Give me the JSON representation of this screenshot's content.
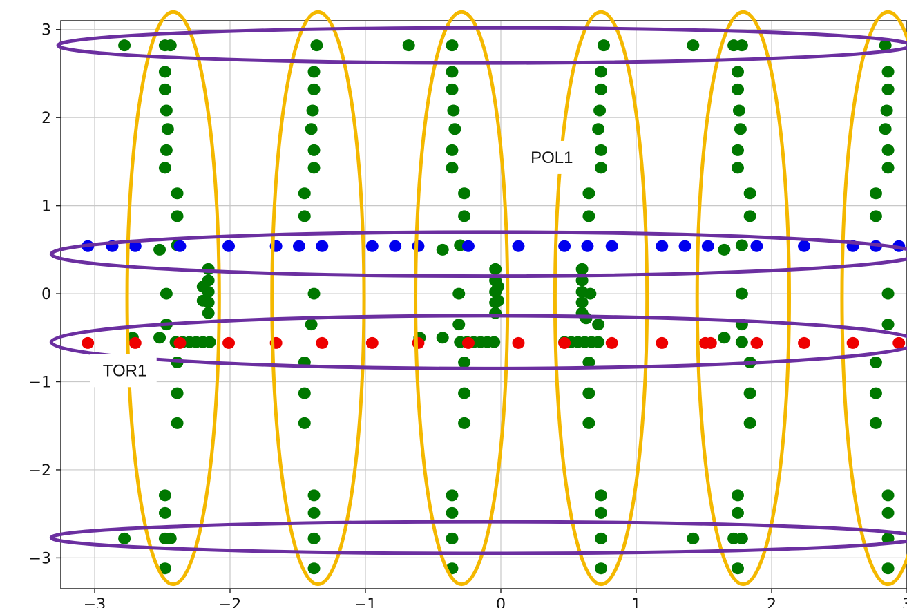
{
  "chart_data": {
    "type": "scatter",
    "title": "",
    "xlabel": "",
    "ylabel": "",
    "xlim": [
      -3.25,
      3.0
    ],
    "ylim": [
      -3.35,
      3.1
    ],
    "grid": true,
    "x_ticks": [
      -3,
      -2,
      -1,
      0,
      1,
      2,
      3
    ],
    "x_tick_labels": [
      "−3",
      "−2",
      "−1",
      "0",
      "1",
      "2",
      "3"
    ],
    "y_ticks": [
      3,
      2,
      1,
      0,
      -1,
      -2,
      -3
    ],
    "y_tick_labels": [
      "3",
      "2",
      "1",
      "0",
      "−1",
      "−2",
      "−3"
    ],
    "series": [
      {
        "color": "#007800",
        "points": [
          [
            -2.78,
            2.82
          ],
          [
            -2.48,
            2.82
          ],
          [
            -2.44,
            2.82
          ],
          [
            -1.36,
            2.82
          ],
          [
            -0.68,
            2.82
          ],
          [
            -0.36,
            2.82
          ],
          [
            0.76,
            2.82
          ],
          [
            1.42,
            2.82
          ],
          [
            1.72,
            2.82
          ],
          [
            1.78,
            2.82
          ],
          [
            2.84,
            2.82
          ],
          [
            -2.48,
            2.52
          ],
          [
            -2.48,
            2.32
          ],
          [
            -2.47,
            2.08
          ],
          [
            -2.46,
            1.87
          ],
          [
            -2.47,
            1.63
          ],
          [
            -2.48,
            1.43
          ],
          [
            -2.39,
            1.14
          ],
          [
            -2.39,
            0.88
          ],
          [
            -1.38,
            2.52
          ],
          [
            -1.38,
            2.32
          ],
          [
            -1.39,
            2.08
          ],
          [
            -1.4,
            1.87
          ],
          [
            -1.38,
            1.63
          ],
          [
            -1.38,
            1.43
          ],
          [
            -1.45,
            1.14
          ],
          [
            -1.45,
            0.88
          ],
          [
            -0.36,
            2.52
          ],
          [
            -0.36,
            2.32
          ],
          [
            -0.35,
            2.08
          ],
          [
            -0.34,
            1.87
          ],
          [
            -0.36,
            1.63
          ],
          [
            -0.36,
            1.43
          ],
          [
            -0.27,
            1.14
          ],
          [
            -0.27,
            0.88
          ],
          [
            0.74,
            2.52
          ],
          [
            0.74,
            2.32
          ],
          [
            0.73,
            2.08
          ],
          [
            0.72,
            1.87
          ],
          [
            0.74,
            1.63
          ],
          [
            0.74,
            1.43
          ],
          [
            0.65,
            1.14
          ],
          [
            0.65,
            0.88
          ],
          [
            1.75,
            2.52
          ],
          [
            1.75,
            2.32
          ],
          [
            1.76,
            2.08
          ],
          [
            1.77,
            1.87
          ],
          [
            1.75,
            1.63
          ],
          [
            1.75,
            1.43
          ],
          [
            1.84,
            1.14
          ],
          [
            1.84,
            0.88
          ],
          [
            2.86,
            2.52
          ],
          [
            2.86,
            2.32
          ],
          [
            2.85,
            2.08
          ],
          [
            2.84,
            1.87
          ],
          [
            2.86,
            1.63
          ],
          [
            2.86,
            1.43
          ],
          [
            2.77,
            1.14
          ],
          [
            2.77,
            0.88
          ],
          [
            -2.52,
            0.5
          ],
          [
            -2.39,
            0.55
          ],
          [
            -0.43,
            0.5
          ],
          [
            -0.3,
            0.55
          ],
          [
            1.65,
            0.5
          ],
          [
            1.78,
            0.55
          ],
          [
            -2.16,
            0.28
          ],
          [
            -2.16,
            0.15
          ],
          [
            -2.16,
            0.02
          ],
          [
            -2.16,
            -0.1
          ],
          [
            -2.16,
            -0.22
          ],
          [
            -2.2,
            0.08
          ],
          [
            -2.2,
            -0.08
          ],
          [
            -0.04,
            0.28
          ],
          [
            -0.04,
            0.15
          ],
          [
            -0.04,
            0.02
          ],
          [
            -0.04,
            -0.1
          ],
          [
            -0.04,
            -0.22
          ],
          [
            -0.02,
            0.08
          ],
          [
            -0.02,
            -0.08
          ],
          [
            0.6,
            0.28
          ],
          [
            0.6,
            0.15
          ],
          [
            0.6,
            0.02
          ],
          [
            0.6,
            -0.1
          ],
          [
            0.6,
            -0.22
          ],
          [
            0.66,
            0.0
          ],
          [
            0.63,
            -0.28
          ],
          [
            -2.47,
            0.0
          ],
          [
            -1.38,
            0.0
          ],
          [
            -0.31,
            0.0
          ],
          [
            1.78,
            0.0
          ],
          [
            2.86,
            0.0
          ],
          [
            -2.47,
            -0.35
          ],
          [
            -1.4,
            -0.35
          ],
          [
            -0.31,
            -0.35
          ],
          [
            0.72,
            -0.35
          ],
          [
            1.78,
            -0.35
          ],
          [
            2.86,
            -0.35
          ],
          [
            -2.72,
            -0.5
          ],
          [
            -2.52,
            -0.5
          ],
          [
            -2.4,
            -0.55
          ],
          [
            -2.35,
            -0.55
          ],
          [
            -2.3,
            -0.55
          ],
          [
            -2.25,
            -0.55
          ],
          [
            -2.2,
            -0.55
          ],
          [
            -2.15,
            -0.55
          ],
          [
            -0.6,
            -0.5
          ],
          [
            -0.43,
            -0.5
          ],
          [
            -0.3,
            -0.55
          ],
          [
            -0.25,
            -0.55
          ],
          [
            -0.2,
            -0.55
          ],
          [
            -0.15,
            -0.55
          ],
          [
            -0.1,
            -0.55
          ],
          [
            -0.05,
            -0.55
          ],
          [
            0.47,
            -0.55
          ],
          [
            0.52,
            -0.55
          ],
          [
            0.57,
            -0.55
          ],
          [
            0.62,
            -0.55
          ],
          [
            0.67,
            -0.55
          ],
          [
            0.72,
            -0.55
          ],
          [
            1.65,
            -0.5
          ],
          [
            1.78,
            -0.55
          ],
          [
            -2.39,
            -0.78
          ],
          [
            -2.39,
            -1.13
          ],
          [
            -2.39,
            -1.47
          ],
          [
            -1.45,
            -0.78
          ],
          [
            -1.45,
            -1.13
          ],
          [
            -1.45,
            -1.47
          ],
          [
            -0.27,
            -0.78
          ],
          [
            -0.27,
            -1.13
          ],
          [
            -0.27,
            -1.47
          ],
          [
            0.65,
            -0.78
          ],
          [
            0.65,
            -1.13
          ],
          [
            0.65,
            -1.47
          ],
          [
            1.84,
            -0.78
          ],
          [
            1.84,
            -1.13
          ],
          [
            1.84,
            -1.47
          ],
          [
            2.77,
            -0.78
          ],
          [
            2.77,
            -1.13
          ],
          [
            2.77,
            -1.47
          ],
          [
            -2.48,
            -2.29
          ],
          [
            -2.48,
            -2.49
          ],
          [
            -2.48,
            -2.78
          ],
          [
            -2.44,
            -2.78
          ],
          [
            -2.78,
            -2.78
          ],
          [
            -2.48,
            -3.12
          ],
          [
            -1.38,
            -2.29
          ],
          [
            -1.38,
            -2.49
          ],
          [
            -1.38,
            -2.78
          ],
          [
            -1.38,
            -3.12
          ],
          [
            -0.36,
            -2.29
          ],
          [
            -0.36,
            -2.49
          ],
          [
            -0.36,
            -2.78
          ],
          [
            -0.36,
            -3.12
          ],
          [
            0.74,
            -2.29
          ],
          [
            0.74,
            -2.49
          ],
          [
            0.74,
            -2.78
          ],
          [
            0.74,
            -3.12
          ],
          [
            1.75,
            -2.29
          ],
          [
            1.75,
            -2.49
          ],
          [
            1.42,
            -2.78
          ],
          [
            1.72,
            -2.78
          ],
          [
            1.78,
            -2.78
          ],
          [
            1.75,
            -3.12
          ],
          [
            2.86,
            -2.29
          ],
          [
            2.86,
            -2.49
          ],
          [
            2.86,
            -2.78
          ],
          [
            2.86,
            -3.12
          ]
        ]
      },
      {
        "color": "#0000ee",
        "points": [
          [
            -3.05,
            0.54
          ],
          [
            -2.87,
            0.54
          ],
          [
            -2.7,
            0.54
          ],
          [
            -2.37,
            0.54
          ],
          [
            -2.01,
            0.54
          ],
          [
            -1.66,
            0.54
          ],
          [
            -1.49,
            0.54
          ],
          [
            -1.32,
            0.54
          ],
          [
            -0.95,
            0.54
          ],
          [
            -0.78,
            0.54
          ],
          [
            -0.61,
            0.54
          ],
          [
            -0.24,
            0.54
          ],
          [
            0.13,
            0.54
          ],
          [
            0.47,
            0.54
          ],
          [
            0.64,
            0.54
          ],
          [
            0.82,
            0.54
          ],
          [
            1.19,
            0.54
          ],
          [
            1.36,
            0.54
          ],
          [
            1.53,
            0.54
          ],
          [
            1.89,
            0.54
          ],
          [
            2.24,
            0.54
          ],
          [
            2.6,
            0.54
          ],
          [
            2.77,
            0.54
          ],
          [
            2.94,
            0.54
          ]
        ]
      },
      {
        "color": "#ee0000",
        "points": [
          [
            -3.05,
            -0.56
          ],
          [
            -2.7,
            -0.56
          ],
          [
            -2.37,
            -0.56
          ],
          [
            -2.01,
            -0.56
          ],
          [
            -1.66,
            -0.56
          ],
          [
            -1.32,
            -0.56
          ],
          [
            -0.95,
            -0.56
          ],
          [
            -0.61,
            -0.56
          ],
          [
            -0.24,
            -0.56
          ],
          [
            0.13,
            -0.56
          ],
          [
            0.47,
            -0.56
          ],
          [
            0.82,
            -0.56
          ],
          [
            1.19,
            -0.56
          ],
          [
            1.51,
            -0.56
          ],
          [
            1.55,
            -0.56
          ],
          [
            1.89,
            -0.56
          ],
          [
            2.24,
            -0.56
          ],
          [
            2.6,
            -0.56
          ],
          [
            2.94,
            -0.56
          ]
        ]
      }
    ],
    "annotations": [
      {
        "text": "POL1",
        "x": 0.22,
        "y": 1.5
      },
      {
        "text": "TOR1",
        "x": -2.94,
        "y": -0.92
      }
    ],
    "overlay_ellipses": {
      "horizontal_color": "#6b2fa0",
      "vertical_color": "#f4b800",
      "horizontal": [
        {
          "cx": -0.12,
          "cy": 2.82,
          "rx": 3.15,
          "ry": 0.2
        },
        {
          "cx": -0.12,
          "cy": 0.45,
          "rx": 3.2,
          "ry": 0.25
        },
        {
          "cx": -0.12,
          "cy": -0.55,
          "rx": 3.2,
          "ry": 0.3
        },
        {
          "cx": -0.12,
          "cy": -2.77,
          "rx": 3.2,
          "ry": 0.18
        }
      ],
      "vertical": [
        {
          "cx": -2.42,
          "cy": -0.05,
          "rx": 0.34,
          "ry": 3.25
        },
        {
          "cx": -1.35,
          "cy": -0.05,
          "rx": 0.34,
          "ry": 3.25
        },
        {
          "cx": -0.29,
          "cy": -0.05,
          "rx": 0.34,
          "ry": 3.25
        },
        {
          "cx": 0.74,
          "cy": -0.05,
          "rx": 0.34,
          "ry": 3.25
        },
        {
          "cx": 1.79,
          "cy": -0.05,
          "rx": 0.34,
          "ry": 3.25
        },
        {
          "cx": 2.86,
          "cy": -0.05,
          "rx": 0.34,
          "ry": 3.25
        }
      ]
    }
  }
}
